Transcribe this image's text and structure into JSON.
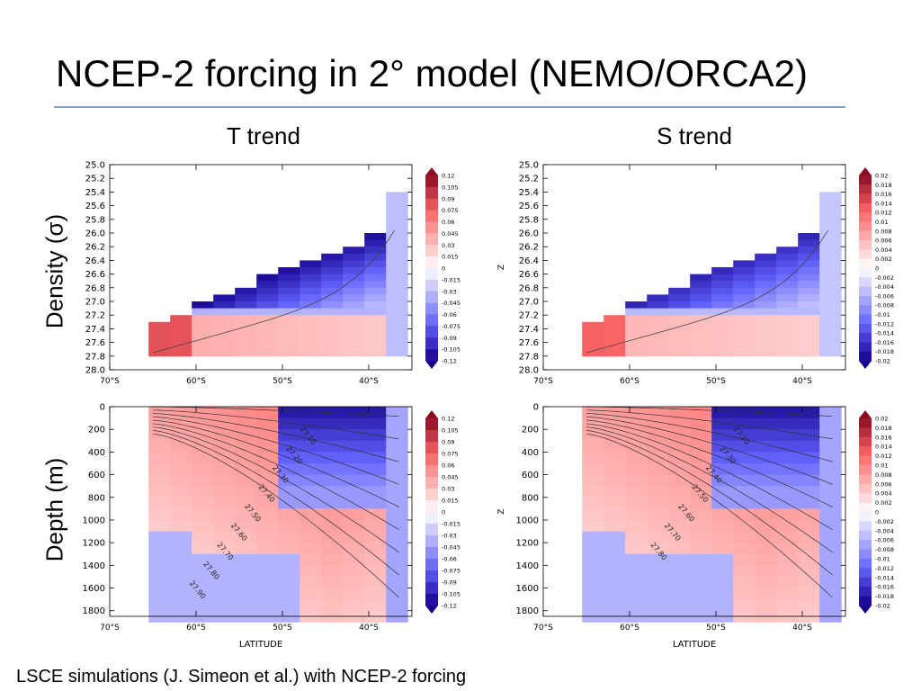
{
  "slide": {
    "title": "NCEP-2 forcing in 2° model (NEMO/ORCA2)",
    "footer": "LSCE simulations (J. Simeon et al.) with NCEP-2 forcing",
    "rule_color": "#7b9fd8"
  },
  "columns": [
    {
      "title": "T trend"
    },
    {
      "title": "S trend"
    }
  ],
  "rows": [
    {
      "label": "Density (σ)"
    },
    {
      "label": "Depth (m)"
    }
  ],
  "chart_data": [
    {
      "type": "heatmap",
      "panel": "T trend, density coordinates",
      "xlabel": "",
      "ylabel": "",
      "x_ticks": [
        "70°S",
        "60°S",
        "50°S",
        "40°S"
      ],
      "y_ticks": [
        "25.0",
        "25.2",
        "25.4",
        "25.6",
        "25.8",
        "26.0",
        "26.2",
        "26.4",
        "26.6",
        "26.8",
        "27.0",
        "27.2",
        "27.4",
        "27.6",
        "27.8",
        "28.0"
      ],
      "ylim": [
        25.0,
        28.0
      ],
      "colorbar": [
        "0.12",
        "0.105",
        "0.09",
        "0.075",
        "0.06",
        "0.045",
        "0.03",
        "0.015",
        "0",
        "-0.015",
        "-0.03",
        "-0.045",
        "-0.06",
        "-0.075",
        "-0.09",
        "-0.105",
        "-0.12"
      ],
      "contour_labels": []
    },
    {
      "type": "heatmap",
      "panel": "S trend, density coordinates",
      "xlabel": "",
      "ylabel": "Z",
      "x_ticks": [
        "70°S",
        "60°S",
        "50°S",
        "40°S"
      ],
      "y_ticks": [
        "25.0",
        "25.2",
        "25.4",
        "25.6",
        "25.8",
        "26.0",
        "26.2",
        "26.4",
        "26.6",
        "26.8",
        "27.0",
        "27.2",
        "27.4",
        "27.6",
        "27.8",
        "28.0"
      ],
      "ylim": [
        25.0,
        28.0
      ],
      "colorbar": [
        "0.02",
        "0.018",
        "0.016",
        "0.014",
        "0.012",
        "0.01",
        "0.008",
        "0.006",
        "0.004",
        "0.002",
        "0",
        "-0.002",
        "-0.004",
        "-0.006",
        "-0.008",
        "-0.01",
        "-0.012",
        "-0.014",
        "-0.016",
        "-0.018",
        "-0.02"
      ],
      "contour_labels": []
    },
    {
      "type": "heatmap",
      "panel": "T trend, depth coordinates",
      "xlabel": "LATITUDE",
      "ylabel": "",
      "x_ticks": [
        "70°S",
        "60°S",
        "50°S",
        "40°S"
      ],
      "y_ticks": [
        "0",
        "200",
        "400",
        "600",
        "800",
        "1000",
        "1200",
        "1400",
        "1600",
        "1800"
      ],
      "ylim": [
        0,
        1850
      ],
      "colorbar": [
        "0.12",
        "0.105",
        "0.09",
        "0.075",
        "0.06",
        "0.045",
        "0.03",
        "0.015",
        "0",
        "-0.015",
        "-0.03",
        "-0.045",
        "-0.06",
        "-0.075",
        "-0.09",
        "-0.105",
        "-0.12"
      ],
      "contour_labels": [
        "27.10",
        "27.20",
        "27.30",
        "27.40",
        "27.50",
        "27.60",
        "27.70",
        "27.80",
        "27.90"
      ]
    },
    {
      "type": "heatmap",
      "panel": "S trend, depth coordinates",
      "xlabel": "LATITUDE",
      "ylabel": "Z",
      "x_ticks": [
        "70°S",
        "60°S",
        "50°S",
        "40°S"
      ],
      "y_ticks": [
        "0",
        "200",
        "400",
        "600",
        "800",
        "1000",
        "1200",
        "1400",
        "1600",
        "1800"
      ],
      "ylim": [
        0,
        1850
      ],
      "colorbar": [
        "0.02",
        "0.018",
        "0.016",
        "0.014",
        "0.012",
        "0.01",
        "0.008",
        "0.006",
        "0.004",
        "0.002",
        "0",
        "-0.002",
        "-0.004",
        "-0.006",
        "-0.008",
        "-0.01",
        "-0.012",
        "-0.014",
        "-0.016",
        "-0.018",
        "-0.02"
      ],
      "contour_labels": [
        "27.20",
        "27.30",
        "27.40",
        "27.50",
        "27.60",
        "27.70",
        "27.80"
      ]
    }
  ]
}
